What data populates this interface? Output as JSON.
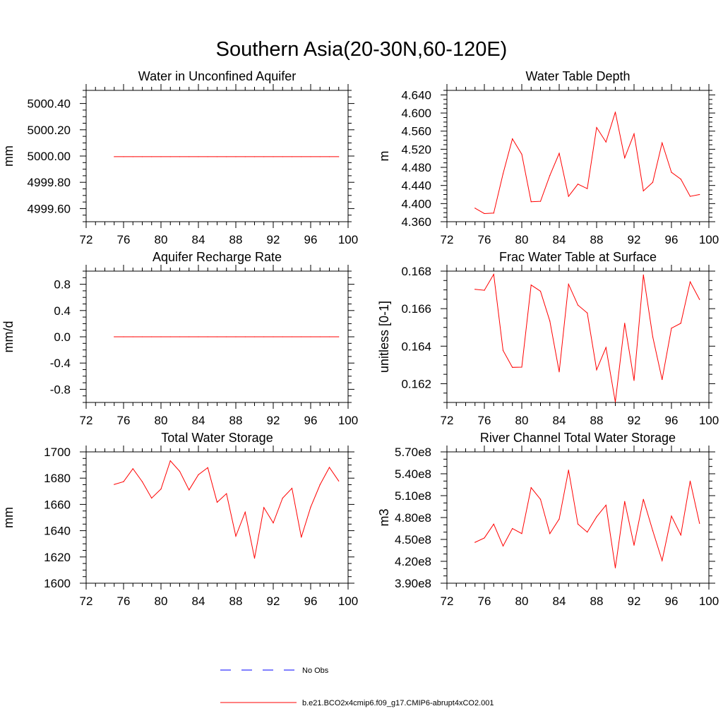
{
  "figure_title": "Southern Asia(20-30N,60-120E)",
  "legend": {
    "items": [
      {
        "label": "No Obs",
        "color": "#0000ff",
        "style": "dashed"
      },
      {
        "label": "b.e21.BCO2x4cmip6.f09_g17.CMIP6-abrupt4xCO2.001",
        "color": "#ff0000",
        "style": "solid"
      }
    ]
  },
  "chart_data": [
    {
      "id": "p1",
      "type": "line",
      "title": "Water in Unconfined Aquifer",
      "xlabel": "",
      "ylabel": "mm",
      "xlim": [
        72,
        100
      ],
      "xticks": [
        72,
        76,
        80,
        84,
        88,
        92,
        96,
        100
      ],
      "xtick_labels": [
        "72",
        "76",
        "80",
        "84",
        "88",
        "92",
        "96",
        "100"
      ],
      "ylim": [
        4999.5,
        5000.5
      ],
      "yticks": [
        4999.6,
        4999.8,
        5000.0,
        5000.2,
        5000.4
      ],
      "ytick_labels": [
        "4999.60",
        "4999.80",
        "5000.00",
        "5000.20",
        "5000.40"
      ],
      "yminor": 0.05,
      "series": [
        {
          "name": "b.e21.BCO2x4cmip6.f09_g17.CMIP6-abrupt4xCO2.001",
          "color": "#ff0000",
          "x": [
            75,
            76,
            77,
            78,
            79,
            80,
            81,
            82,
            83,
            84,
            85,
            86,
            87,
            88,
            89,
            90,
            91,
            92,
            93,
            94,
            95,
            96,
            97,
            98,
            99
          ],
          "y": [
            4999.995,
            4999.995,
            4999.995,
            4999.995,
            4999.995,
            4999.995,
            4999.995,
            4999.995,
            4999.995,
            4999.995,
            4999.995,
            4999.995,
            4999.995,
            4999.995,
            4999.995,
            4999.995,
            4999.995,
            4999.995,
            4999.995,
            4999.995,
            4999.995,
            4999.995,
            4999.995,
            4999.995,
            4999.995
          ]
        }
      ]
    },
    {
      "id": "p2",
      "type": "line",
      "title": "Water Table Depth",
      "xlabel": "",
      "ylabel": "m",
      "xlim": [
        72,
        100
      ],
      "xticks": [
        72,
        76,
        80,
        84,
        88,
        92,
        96,
        100
      ],
      "xtick_labels": [
        "72",
        "76",
        "80",
        "84",
        "88",
        "92",
        "96",
        "100"
      ],
      "ylim": [
        4.36,
        4.65
      ],
      "yticks": [
        4.36,
        4.4,
        4.44,
        4.48,
        4.52,
        4.56,
        4.6,
        4.64
      ],
      "ytick_labels": [
        "4.360",
        "4.400",
        "4.440",
        "4.480",
        "4.520",
        "4.560",
        "4.600",
        "4.640"
      ],
      "yminor": 0.01,
      "series": [
        {
          "name": "b.e21.BCO2x4cmip6.f09_g17.CMIP6-abrupt4xCO2.001",
          "color": "#ff0000",
          "x": [
            75,
            76,
            77,
            78,
            79,
            80,
            81,
            82,
            83,
            84,
            85,
            86,
            87,
            88,
            89,
            90,
            91,
            92,
            93,
            94,
            95,
            96,
            97,
            98,
            99
          ],
          "y": [
            4.39,
            4.378,
            4.379,
            4.466,
            4.543,
            4.509,
            4.404,
            4.405,
            4.462,
            4.511,
            4.416,
            4.443,
            4.433,
            4.568,
            4.536,
            4.602,
            4.501,
            4.554,
            4.428,
            4.447,
            4.534,
            4.469,
            4.454,
            4.416,
            4.42
          ]
        }
      ]
    },
    {
      "id": "p3",
      "type": "line",
      "title": "Aquifer Recharge Rate",
      "xlabel": "",
      "ylabel": "mm/d",
      "xlim": [
        72,
        100
      ],
      "xticks": [
        72,
        76,
        80,
        84,
        88,
        92,
        96,
        100
      ],
      "xtick_labels": [
        "72",
        "76",
        "80",
        "84",
        "88",
        "92",
        "96",
        "100"
      ],
      "ylim": [
        -1.0,
        1.0
      ],
      "yticks": [
        -0.8,
        -0.4,
        0.0,
        0.4,
        0.8
      ],
      "ytick_labels": [
        "-0.8",
        "-0.4",
        "0.0",
        "0.4",
        "0.8"
      ],
      "yminor": 0.1,
      "series": [
        {
          "name": "b.e21.BCO2x4cmip6.f09_g17.CMIP6-abrupt4xCO2.001",
          "color": "#ff0000",
          "x": [
            75,
            76,
            77,
            78,
            79,
            80,
            81,
            82,
            83,
            84,
            85,
            86,
            87,
            88,
            89,
            90,
            91,
            92,
            93,
            94,
            95,
            96,
            97,
            98,
            99
          ],
          "y": [
            0,
            0,
            0,
            0,
            0,
            0,
            0,
            0,
            0,
            0,
            0,
            0,
            0,
            0,
            0,
            0,
            0,
            0,
            0,
            0,
            0,
            0,
            0,
            0,
            0
          ]
        }
      ]
    },
    {
      "id": "p4",
      "type": "line",
      "title": "Frac Water Table at Surface",
      "xlabel": "",
      "ylabel": "unitless [0-1]",
      "xlim": [
        72,
        100
      ],
      "xticks": [
        72,
        76,
        80,
        84,
        88,
        92,
        96,
        100
      ],
      "xtick_labels": [
        "72",
        "76",
        "80",
        "84",
        "88",
        "92",
        "96",
        "100"
      ],
      "ylim": [
        0.161,
        0.168
      ],
      "yticks": [
        0.162,
        0.164,
        0.166,
        0.168
      ],
      "ytick_labels": [
        "0.162",
        "0.164",
        "0.166",
        "0.168"
      ],
      "yminor": 0.0005,
      "series": [
        {
          "name": "b.e21.BCO2x4cmip6.f09_g17.CMIP6-abrupt4xCO2.001",
          "color": "#ff0000",
          "x": [
            75,
            76,
            77,
            78,
            79,
            80,
            81,
            82,
            83,
            84,
            85,
            86,
            87,
            88,
            89,
            90,
            91,
            92,
            93,
            94,
            95,
            96,
            97,
            98,
            99
          ],
          "y": [
            0.16703,
            0.16698,
            0.16783,
            0.16377,
            0.16287,
            0.16288,
            0.16726,
            0.16693,
            0.16534,
            0.16263,
            0.1673,
            0.16619,
            0.16577,
            0.16274,
            0.16393,
            0.16102,
            0.16522,
            0.16217,
            0.1678,
            0.1645,
            0.16222,
            0.16496,
            0.16522,
            0.16743,
            0.16649
          ]
        }
      ]
    },
    {
      "id": "p5",
      "type": "line",
      "title": "Total Water Storage",
      "xlabel": "",
      "ylabel": "mm",
      "xlim": [
        72,
        100
      ],
      "xticks": [
        72,
        76,
        80,
        84,
        88,
        92,
        96,
        100
      ],
      "xtick_labels": [
        "72",
        "76",
        "80",
        "84",
        "88",
        "92",
        "96",
        "100"
      ],
      "ylim": [
        1600,
        1700
      ],
      "yticks": [
        1600,
        1620,
        1640,
        1660,
        1680,
        1700
      ],
      "ytick_labels": [
        "1600",
        "1620",
        "1640",
        "1660",
        "1680",
        "1700"
      ],
      "yminor": 5,
      "series": [
        {
          "name": "b.e21.BCO2x4cmip6.f09_g17.CMIP6-abrupt4xCO2.001",
          "color": "#ff0000",
          "x": [
            75,
            76,
            77,
            78,
            79,
            80,
            81,
            82,
            83,
            84,
            85,
            86,
            87,
            88,
            89,
            90,
            91,
            92,
            93,
            94,
            95,
            96,
            97,
            98,
            99
          ],
          "y": [
            1675.2,
            1677.3,
            1687.2,
            1677.3,
            1664.8,
            1671.7,
            1693.2,
            1685.2,
            1671.0,
            1682.6,
            1688.0,
            1661.6,
            1668.2,
            1635.8,
            1654.1,
            1619.0,
            1657.6,
            1645.9,
            1664.8,
            1672.3,
            1635.0,
            1657.9,
            1675.0,
            1688.2,
            1677.8
          ]
        }
      ]
    },
    {
      "id": "p6",
      "type": "line",
      "title": "River Channel Total Water Storage",
      "xlabel": "",
      "ylabel": "m3",
      "xlim": [
        72,
        100
      ],
      "xticks": [
        72,
        76,
        80,
        84,
        88,
        92,
        96,
        100
      ],
      "xtick_labels": [
        "72",
        "76",
        "80",
        "84",
        "88",
        "92",
        "96",
        "100"
      ],
      "ylim": [
        390000000,
        570000000
      ],
      "yticks": [
        390000000,
        420000000,
        450000000,
        480000000,
        510000000,
        540000000,
        570000000
      ],
      "ytick_labels": [
        "3.90e8",
        "4.20e8",
        "4.50e8",
        "4.80e8",
        "5.10e8",
        "5.40e8",
        "5.70e8"
      ],
      "yminor": 10000000,
      "series": [
        {
          "name": "b.e21.BCO2x4cmip6.f09_g17.CMIP6-abrupt4xCO2.001",
          "color": "#ff0000",
          "x": [
            75,
            76,
            77,
            78,
            79,
            80,
            81,
            82,
            83,
            84,
            85,
            86,
            87,
            88,
            89,
            90,
            91,
            92,
            93,
            94,
            95,
            96,
            97,
            98,
            99
          ],
          "y": [
            446000000,
            452000000,
            471000000,
            441000000,
            465000000,
            458000000,
            521000000,
            505000000,
            458000000,
            478000000,
            545000000,
            471000000,
            460000000,
            481000000,
            497000000,
            411000000,
            502000000,
            442000000,
            505000000,
            462000000,
            421000000,
            482000000,
            456000000,
            530000000,
            472000000
          ]
        }
      ]
    }
  ]
}
